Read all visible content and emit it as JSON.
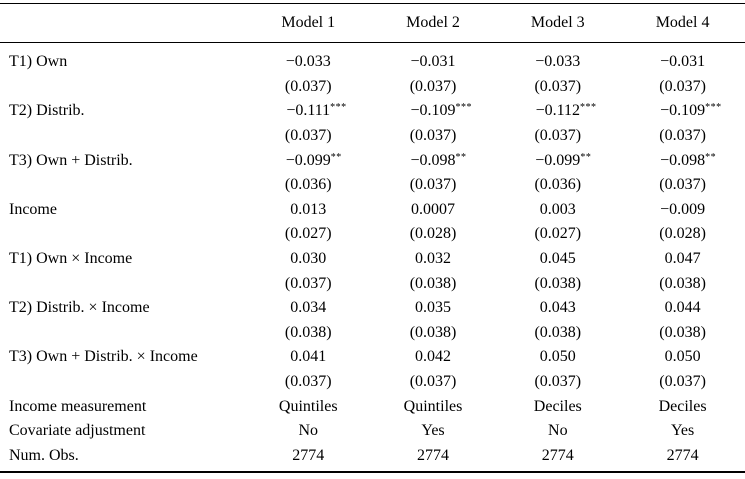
{
  "table": {
    "columns": [
      {
        "label": ""
      },
      {
        "label": "Model 1"
      },
      {
        "label": "Model 2"
      },
      {
        "label": "Model 3"
      },
      {
        "label": "Model 4"
      }
    ],
    "rows": [
      {
        "label": "T1) Own",
        "cells": [
          {
            "v": "−0.033"
          },
          {
            "v": "−0.031"
          },
          {
            "v": "−0.033"
          },
          {
            "v": "−0.031"
          }
        ]
      },
      {
        "label": "",
        "cells": [
          {
            "v": "(0.037)"
          },
          {
            "v": "(0.037)"
          },
          {
            "v": "(0.037)"
          },
          {
            "v": "(0.037)"
          }
        ]
      },
      {
        "label": "T2) Distrib.",
        "cells": [
          {
            "v": "−0.111",
            "stars": "***"
          },
          {
            "v": "−0.109",
            "stars": "***"
          },
          {
            "v": "−0.112",
            "stars": "***"
          },
          {
            "v": "−0.109",
            "stars": "***"
          }
        ]
      },
      {
        "label": "",
        "cells": [
          {
            "v": "(0.037)"
          },
          {
            "v": "(0.037)"
          },
          {
            "v": "(0.037)"
          },
          {
            "v": "(0.037)"
          }
        ]
      },
      {
        "label": "T3) Own + Distrib.",
        "cells": [
          {
            "v": "−0.099",
            "stars": "**"
          },
          {
            "v": "−0.098",
            "stars": "**"
          },
          {
            "v": "−0.099",
            "stars": "**"
          },
          {
            "v": "−0.098",
            "stars": "**"
          }
        ]
      },
      {
        "label": "",
        "cells": [
          {
            "v": "(0.036)"
          },
          {
            "v": "(0.037)"
          },
          {
            "v": "(0.036)"
          },
          {
            "v": "(0.037)"
          }
        ]
      },
      {
        "label": "Income",
        "cells": [
          {
            "v": "0.013"
          },
          {
            "v": "0.0007"
          },
          {
            "v": "0.003"
          },
          {
            "v": "−0.009"
          }
        ]
      },
      {
        "label": "",
        "cells": [
          {
            "v": "(0.027)"
          },
          {
            "v": "(0.028)"
          },
          {
            "v": "(0.027)"
          },
          {
            "v": "(0.028)"
          }
        ]
      },
      {
        "label": "T1) Own × Income",
        "cells": [
          {
            "v": "0.030"
          },
          {
            "v": "0.032"
          },
          {
            "v": "0.045"
          },
          {
            "v": "0.047"
          }
        ]
      },
      {
        "label": "",
        "cells": [
          {
            "v": "(0.037)"
          },
          {
            "v": "(0.038)"
          },
          {
            "v": "(0.038)"
          },
          {
            "v": "(0.038)"
          }
        ]
      },
      {
        "label": "T2) Distrib. × Income",
        "cells": [
          {
            "v": "0.034"
          },
          {
            "v": "0.035"
          },
          {
            "v": "0.043"
          },
          {
            "v": "0.044"
          }
        ]
      },
      {
        "label": "",
        "cells": [
          {
            "v": "(0.038)"
          },
          {
            "v": "(0.038)"
          },
          {
            "v": "(0.038)"
          },
          {
            "v": "(0.038)"
          }
        ]
      },
      {
        "label": "T3) Own + Distrib. × Income",
        "cells": [
          {
            "v": "0.041"
          },
          {
            "v": "0.042"
          },
          {
            "v": "0.050"
          },
          {
            "v": "0.050"
          }
        ]
      },
      {
        "label": "",
        "cells": [
          {
            "v": "(0.037)"
          },
          {
            "v": "(0.037)"
          },
          {
            "v": "(0.037)"
          },
          {
            "v": "(0.037)"
          }
        ]
      },
      {
        "label": "Income measurement",
        "cells": [
          {
            "v": "Quintiles"
          },
          {
            "v": "Quintiles"
          },
          {
            "v": "Deciles"
          },
          {
            "v": "Deciles"
          }
        ]
      },
      {
        "label": "Covariate adjustment",
        "cells": [
          {
            "v": "No"
          },
          {
            "v": "Yes"
          },
          {
            "v": "No"
          },
          {
            "v": "Yes"
          }
        ]
      },
      {
        "label": "Num. Obs.",
        "cells": [
          {
            "v": "2774"
          },
          {
            "v": "2774"
          },
          {
            "v": "2774"
          },
          {
            "v": "2774"
          }
        ]
      }
    ]
  }
}
